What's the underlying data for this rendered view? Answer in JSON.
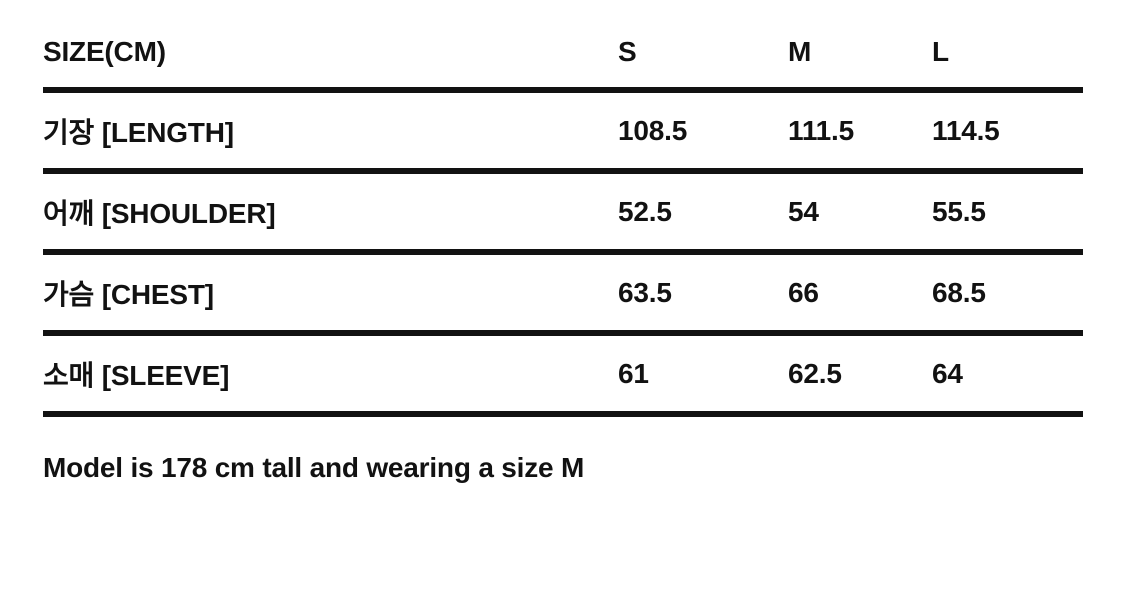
{
  "size_chart": {
    "header": {
      "label": "SIZE(CM)",
      "columns": [
        "S",
        "M",
        "L"
      ]
    },
    "rows": [
      {
        "label": "기장 [LENGTH]",
        "values": [
          "108.5",
          "111.5",
          "114.5"
        ]
      },
      {
        "label": "어깨 [SHOULDER]",
        "values": [
          "52.5",
          "54",
          "55.5"
        ]
      },
      {
        "label": "가슴 [CHEST]",
        "values": [
          "63.5",
          "66",
          "68.5"
        ]
      },
      {
        "label": "소매 [SLEEVE]",
        "values": [
          "61",
          "62.5",
          "64"
        ]
      }
    ],
    "note": "Model is 178 cm tall and wearing a size M"
  },
  "colors": {
    "text": "#121212",
    "rule": "#121212",
    "background": "#ffffff"
  }
}
